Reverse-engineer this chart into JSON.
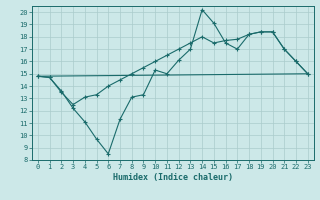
{
  "xlabel": "Humidex (Indice chaleur)",
  "background_color": "#cce8e8",
  "grid_color": "#aacccc",
  "line_color": "#1a6b6b",
  "xlim": [
    -0.5,
    23.5
  ],
  "ylim": [
    8,
    20.5
  ],
  "xticks": [
    0,
    1,
    2,
    3,
    4,
    5,
    6,
    7,
    8,
    9,
    10,
    11,
    12,
    13,
    14,
    15,
    16,
    17,
    18,
    19,
    20,
    21,
    22,
    23
  ],
  "yticks": [
    8,
    9,
    10,
    11,
    12,
    13,
    14,
    15,
    16,
    17,
    18,
    19,
    20
  ],
  "line1_x": [
    0,
    1,
    2,
    3,
    4,
    5,
    6,
    7,
    8,
    9,
    10,
    11,
    12,
    13,
    14,
    15,
    16,
    17,
    18,
    19,
    20,
    21,
    22,
    23
  ],
  "line1_y": [
    14.8,
    14.7,
    13.6,
    12.2,
    11.1,
    9.7,
    8.5,
    11.3,
    13.1,
    13.3,
    15.3,
    15.0,
    16.1,
    17.0,
    20.2,
    19.1,
    17.5,
    17.0,
    18.2,
    18.4,
    18.4,
    17.0,
    16.0,
    15.0
  ],
  "line2_x": [
    0,
    1,
    2,
    3,
    4,
    5,
    6,
    7,
    8,
    9,
    10,
    11,
    12,
    13,
    14,
    15,
    16,
    17,
    18,
    19,
    20,
    21,
    22,
    23
  ],
  "line2_y": [
    14.8,
    14.7,
    13.5,
    12.5,
    13.1,
    13.3,
    14.0,
    14.5,
    15.0,
    15.5,
    16.0,
    16.5,
    17.0,
    17.5,
    18.0,
    17.5,
    17.7,
    17.8,
    18.2,
    18.4,
    18.4,
    17.0,
    16.0,
    15.0
  ],
  "line3_x": [
    0,
    23
  ],
  "line3_y": [
    14.8,
    15.0
  ]
}
